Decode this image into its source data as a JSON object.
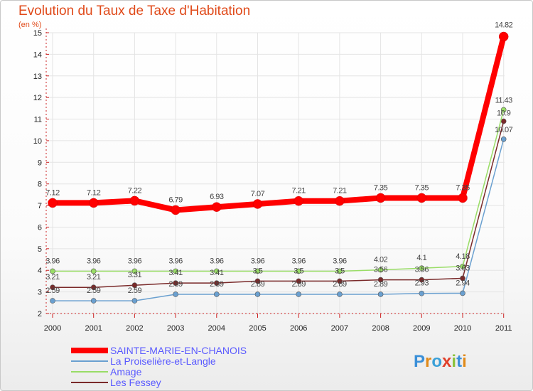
{
  "title": "Evolution du Taux de Taxe d'Habitation",
  "unit_label": "(en %)",
  "logo_text": "Proxiti",
  "colors": {
    "title": "#e04a1a",
    "axis": "#cc2222",
    "grid": "#e4e4e4"
  },
  "chart_data": {
    "type": "line",
    "title": "Evolution du Taux de Taxe d'Habitation",
    "ylabel": "(en %)",
    "xlabel": "",
    "x": [
      "2000",
      "2001",
      "2002",
      "2003",
      "2004",
      "2005",
      "2006",
      "2007",
      "2008",
      "2009",
      "2010",
      "2011"
    ],
    "yticks": [
      "2",
      "3",
      "4",
      "5",
      "6",
      "7",
      "8",
      "9",
      "10",
      "11",
      "12",
      "13",
      "14",
      "15"
    ],
    "ylim": [
      2,
      15
    ],
    "legend_position": "bottom-left",
    "series": [
      {
        "name": "SAINTE-MARIE-EN-CHANOIS",
        "color": "#ff0000",
        "legend_color": "#5a5aff",
        "values": [
          7.12,
          7.12,
          7.22,
          6.79,
          6.93,
          7.07,
          7.21,
          7.21,
          7.35,
          7.35,
          7.35,
          14.82
        ],
        "labels": [
          "7.12",
          "7.12",
          "7.22",
          "6.79",
          "6.93",
          "7.07",
          "7.21",
          "7.21",
          "7.35",
          "7.35",
          "7.35",
          "14.82"
        ]
      },
      {
        "name": "La Proiselière-et-Langle",
        "color": "#6aa0d0",
        "legend_color": "#5a5aff",
        "values": [
          2.59,
          2.59,
          2.59,
          2.89,
          2.89,
          2.89,
          2.89,
          2.89,
          2.89,
          2.93,
          2.94,
          10.07
        ],
        "labels": [
          "2.59",
          "2.59",
          "2.59",
          "2.89",
          "2.89",
          "2.89",
          "2.89",
          "2.89",
          "2.89",
          "2.93",
          "2.94",
          "10.07"
        ]
      },
      {
        "name": "Amage",
        "color": "#99dd66",
        "legend_color": "#5a5aff",
        "values": [
          3.96,
          3.96,
          3.96,
          3.96,
          3.96,
          3.96,
          3.96,
          3.96,
          4.02,
          4.1,
          4.18,
          11.43
        ],
        "labels": [
          "3.96",
          "3.96",
          "3.96",
          "3.96",
          "3.96",
          "3.96",
          "3.96",
          "3.96",
          "4.02",
          "4.1",
          "4.18",
          "11.43"
        ]
      },
      {
        "name": "Les Fessey",
        "color": "#7a2a2a",
        "legend_color": "#5a5aff",
        "values": [
          3.21,
          3.21,
          3.31,
          3.41,
          3.41,
          3.5,
          3.5,
          3.5,
          3.56,
          3.56,
          3.63,
          10.9
        ],
        "labels": [
          "3.21",
          "3.21",
          "3.31",
          "3.41",
          "3.41",
          "3.5",
          "3.5",
          "3.5",
          "3.56",
          "3.56",
          "3.63",
          "10.9"
        ]
      }
    ]
  }
}
